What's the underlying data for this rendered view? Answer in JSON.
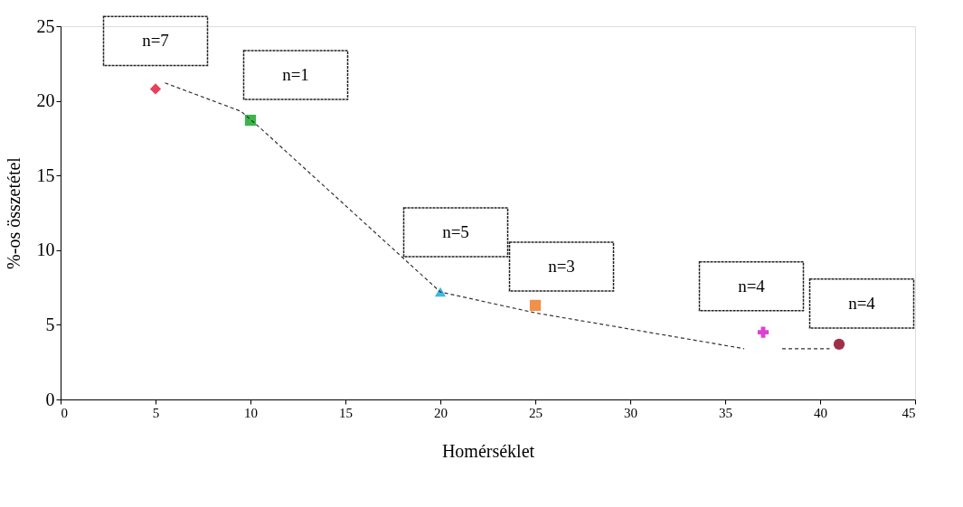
{
  "chart_data": {
    "type": "scatter",
    "xlabel": "Homérséklet",
    "ylabel": "%-os összetétel",
    "xlim": [
      0,
      45
    ],
    "xticks": [
      0,
      5,
      10,
      15,
      20,
      25,
      30,
      35,
      40,
      45
    ],
    "ylim": [
      0,
      25
    ],
    "yticks": [
      0,
      5,
      10,
      15,
      20,
      25
    ],
    "grid": false,
    "series": [
      {
        "x": [
          5
        ],
        "values": [
          20.8
        ],
        "color": "#e8405a",
        "marker": "diamond"
      },
      {
        "x": [
          10
        ],
        "values": [
          18.7
        ],
        "color": "#3cb44a",
        "marker": "square"
      },
      {
        "x": [
          20
        ],
        "values": [
          7.2
        ],
        "color": "#40b8e0",
        "marker": "triangle"
      },
      {
        "x": [
          25
        ],
        "values": [
          6.3
        ],
        "color": "#f0904a",
        "marker": "square"
      },
      {
        "x": [
          37
        ],
        "values": [
          4.5
        ],
        "color": "#e040d0",
        "marker": "cross"
      },
      {
        "x": [
          41
        ],
        "values": [
          3.7
        ],
        "color": "#a03048",
        "marker": "circle"
      },
      {
        "type": "line",
        "x": [
          5.5,
          9.5,
          10.5,
          20,
          25,
          36,
          36.8,
          38,
          40.5
        ],
        "values": [
          21.2,
          19.3,
          18.2,
          7.2,
          5.8,
          3.4,
          null,
          3.4,
          3.4
        ],
        "color": "#333333",
        "line_style": "dashed",
        "marker": "none"
      }
    ],
    "annotations": [
      {
        "text": "n=7",
        "x": 5,
        "y": 20.8
      },
      {
        "text": "n=1",
        "x": 10,
        "y": 18.7
      },
      {
        "text": "n=5",
        "x": 20,
        "y": 7.2
      },
      {
        "text": "n=3",
        "x": 25,
        "y": 6.3
      },
      {
        "text": "n=4",
        "x": 37,
        "y": 4.5
      },
      {
        "text": "n=4",
        "x": 41,
        "y": 3.7
      }
    ]
  }
}
